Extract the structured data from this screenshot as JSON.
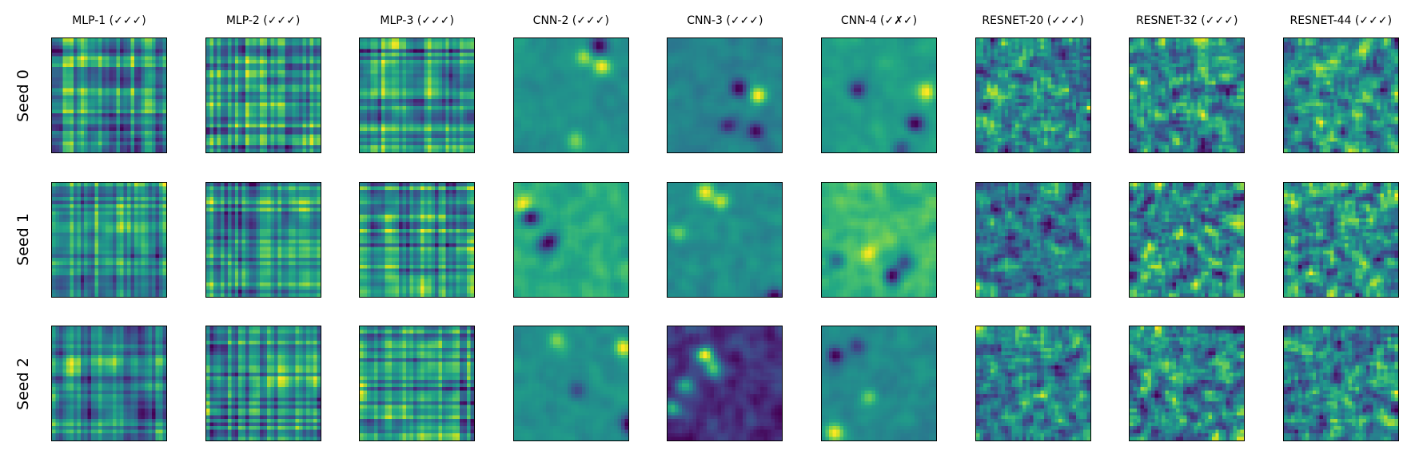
{
  "chart_data": {
    "type": "heatmap",
    "layout": "grid",
    "columns": [
      "MLP-1 (✓✓✓)",
      "MLP-2 (✓✓✓)",
      "MLP-3 (✓✓✓)",
      "CNN-2 (✓✓✓)",
      "CNN-3 (✓✓✓)",
      "CNN-4 (✓✗✓)",
      "RESNET-20 (✓✓✓)",
      "RESNET-32 (✓✓✓)",
      "RESNET-44 (✓✓✓)"
    ],
    "rows": [
      "Seed 0",
      "Seed 1",
      "Seed 2"
    ],
    "colormap": "viridis",
    "axes_ticks": false,
    "colors": {
      "viridis_low": "#440154",
      "viridis_mid": "#21918c",
      "viridis_high": "#fde725",
      "frame": "#000000"
    }
  }
}
